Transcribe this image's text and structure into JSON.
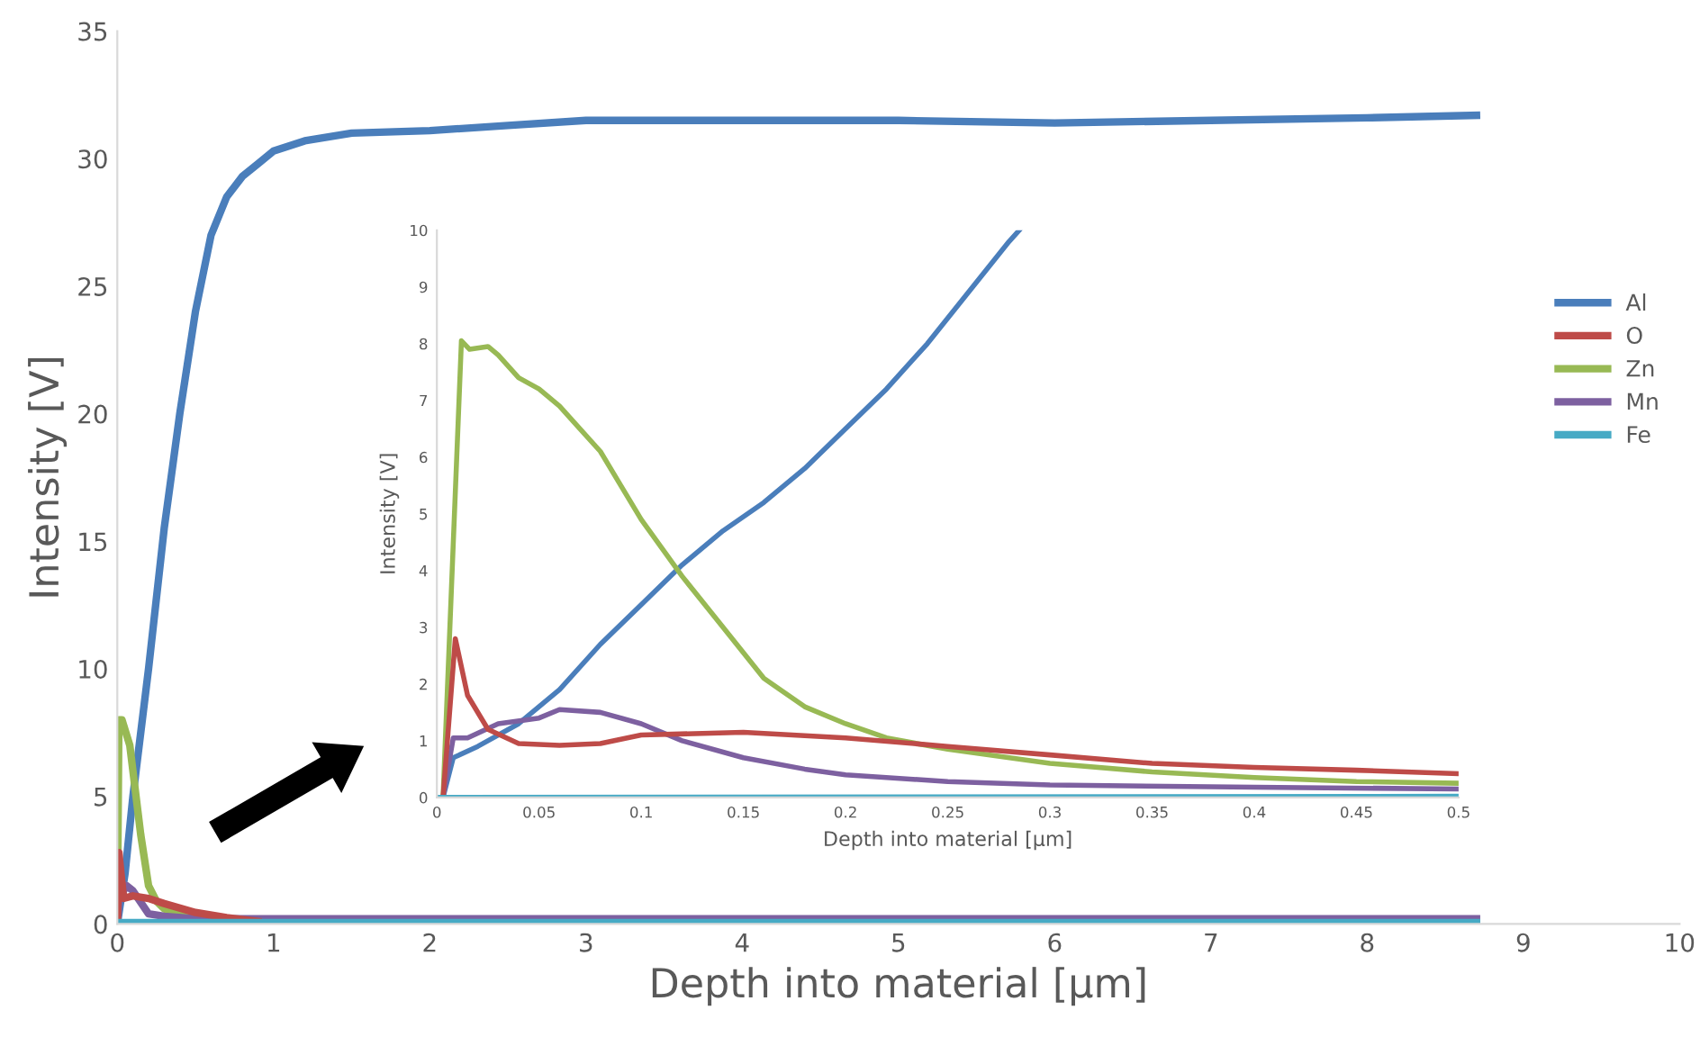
{
  "chart_data": [
    {
      "type": "line",
      "xlabel": "Depth into material [µm]",
      "ylabel": "Intensity [V]",
      "xlim": [
        0,
        10
      ],
      "ylim": [
        0,
        35
      ],
      "xticks": [
        0,
        1,
        2,
        3,
        4,
        5,
        6,
        7,
        8,
        9,
        10
      ],
      "yticks": [
        0,
        5,
        10,
        15,
        20,
        25,
        30,
        35
      ],
      "grid": false,
      "legend": "right",
      "marker": "none",
      "line_style": "solid",
      "series": [
        {
          "name": "Al",
          "color": "#4a7ebb",
          "x": [
            0,
            0.05,
            0.1,
            0.2,
            0.3,
            0.4,
            0.5,
            0.6,
            0.7,
            0.8,
            0.9,
            1.0,
            1.2,
            1.5,
            2,
            2.5,
            3,
            3.5,
            4,
            5,
            6,
            7,
            8,
            8.7
          ],
          "values": [
            0,
            2,
            5,
            10,
            15.5,
            20,
            24,
            27,
            28.5,
            29.3,
            29.8,
            30.3,
            30.7,
            31,
            31.1,
            31.3,
            31.5,
            31.5,
            31.5,
            31.5,
            31.4,
            31.5,
            31.6,
            31.7
          ]
        },
        {
          "name": "O",
          "color": "#be4b48",
          "x": [
            0,
            0.01,
            0.04,
            0.1,
            0.2,
            0.3,
            0.5,
            0.7,
            0.9
          ],
          "values": [
            0,
            2.8,
            1.0,
            1.1,
            1.0,
            0.8,
            0.45,
            0.25,
            0.1
          ]
        },
        {
          "name": "Zn",
          "color": "#98b954",
          "x": [
            0,
            0.01,
            0.03,
            0.08,
            0.1,
            0.15,
            0.2,
            0.25,
            0.3,
            0.4,
            0.5,
            0.7
          ],
          "values": [
            0,
            8,
            8,
            7,
            6,
            3.5,
            1.5,
            0.9,
            0.6,
            0.4,
            0.3,
            0.1
          ]
        },
        {
          "name": "Mn",
          "color": "#7d60a0",
          "x": [
            0,
            0.01,
            0.06,
            0.1,
            0.2,
            0.3,
            0.5,
            1,
            8.7
          ],
          "values": [
            0,
            1.0,
            1.5,
            1.3,
            0.4,
            0.3,
            0.2,
            0.2,
            0.2
          ]
        },
        {
          "name": "Fe",
          "color": "#46aac5",
          "x": [
            0,
            8.7
          ],
          "values": [
            0.05,
            0.05
          ]
        }
      ]
    },
    {
      "type": "line",
      "xlabel": "Depth into material [µm]",
      "ylabel": "Intensity [V]",
      "xlim": [
        0,
        0.5
      ],
      "ylim": [
        0,
        10
      ],
      "xticks": [
        0,
        0.05,
        0.1,
        0.15,
        0.2,
        0.25,
        0.3,
        0.35,
        0.4,
        0.45,
        0.5
      ],
      "yticks": [
        0,
        1,
        2,
        3,
        4,
        5,
        6,
        7,
        8,
        9,
        10
      ],
      "grid": false,
      "marker": "none",
      "line_style": "solid",
      "series": [
        {
          "color": "#4a7ebb",
          "x": [
            0.003,
            0.008,
            0.02,
            0.04,
            0.06,
            0.08,
            0.1,
            0.12,
            0.14,
            0.16,
            0.18,
            0.2,
            0.22,
            0.24,
            0.26,
            0.28,
            0.285
          ],
          "values": [
            0,
            0.7,
            0.9,
            1.3,
            1.9,
            2.7,
            3.4,
            4.1,
            4.7,
            5.2,
            5.8,
            6.5,
            7.2,
            8.0,
            8.9,
            9.8,
            10
          ]
        },
        {
          "color": "#be4b48",
          "x": [
            0.003,
            0.009,
            0.015,
            0.025,
            0.04,
            0.06,
            0.08,
            0.1,
            0.15,
            0.2,
            0.25,
            0.3,
            0.35,
            0.4,
            0.45,
            0.5
          ],
          "values": [
            0,
            2.8,
            1.8,
            1.2,
            0.95,
            0.92,
            0.95,
            1.1,
            1.15,
            1.05,
            0.9,
            0.75,
            0.6,
            0.53,
            0.48,
            0.42
          ]
        },
        {
          "color": "#98b954",
          "x": [
            0.003,
            0.012,
            0.016,
            0.025,
            0.03,
            0.04,
            0.05,
            0.06,
            0.07,
            0.08,
            0.09,
            0.1,
            0.12,
            0.14,
            0.16,
            0.18,
            0.2,
            0.22,
            0.25,
            0.3,
            0.35,
            0.4,
            0.45,
            0.5
          ],
          "values": [
            0,
            8.05,
            7.9,
            7.95,
            7.8,
            7.4,
            7.2,
            6.9,
            6.5,
            6.1,
            5.5,
            4.9,
            3.9,
            3.0,
            2.1,
            1.6,
            1.3,
            1.05,
            0.85,
            0.6,
            0.45,
            0.35,
            0.28,
            0.25
          ]
        },
        {
          "color": "#7d60a0",
          "x": [
            0.003,
            0.008,
            0.015,
            0.03,
            0.05,
            0.06,
            0.08,
            0.1,
            0.12,
            0.15,
            0.18,
            0.2,
            0.25,
            0.3,
            0.4,
            0.5
          ],
          "values": [
            0,
            1.05,
            1.05,
            1.3,
            1.4,
            1.55,
            1.5,
            1.3,
            1.0,
            0.7,
            0.5,
            0.4,
            0.28,
            0.22,
            0.18,
            0.15
          ]
        },
        {
          "color": "#46aac5",
          "x": [
            0,
            0.5
          ],
          "values": [
            0,
            0.02
          ]
        }
      ]
    }
  ]
}
